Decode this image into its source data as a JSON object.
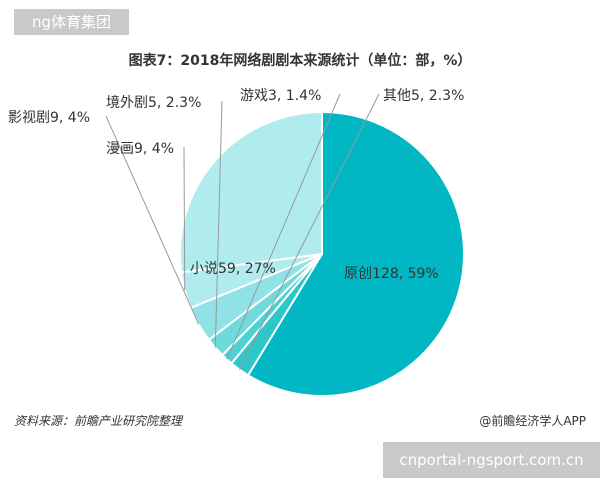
{
  "watermark_top": "ng体育集团",
  "watermark_bottom": "cnportal-ngsport.com.cn",
  "source_note": "资料来源：前瞻产业研究院整理",
  "credit": "@前瞻经济学人APP",
  "colors": {
    "slice": [
      "#00b7c3",
      "#2ec7c9",
      "#4fd0d3",
      "#6fd9dc",
      "#8fe2e5",
      "#b0ebee"
    ]
  },
  "chart_data": {
    "type": "pie",
    "title": "图表7：2018年网络剧剧本来源统计（单位：部，%）",
    "slices": [
      {
        "label": "原创",
        "value": 128,
        "percent": "59%"
      },
      {
        "label": "小说",
        "value": 59,
        "percent": "27%"
      },
      {
        "label": "漫画",
        "value": 9,
        "percent": "4%"
      },
      {
        "label": "影视剧",
        "value": 9,
        "percent": "4%"
      },
      {
        "label": "境外剧",
        "value": 5,
        "percent": "2.3%"
      },
      {
        "label": "游戏",
        "value": 3,
        "percent": "1.4%"
      },
      {
        "label": "其他",
        "value": 5,
        "percent": "2.3%"
      }
    ]
  }
}
